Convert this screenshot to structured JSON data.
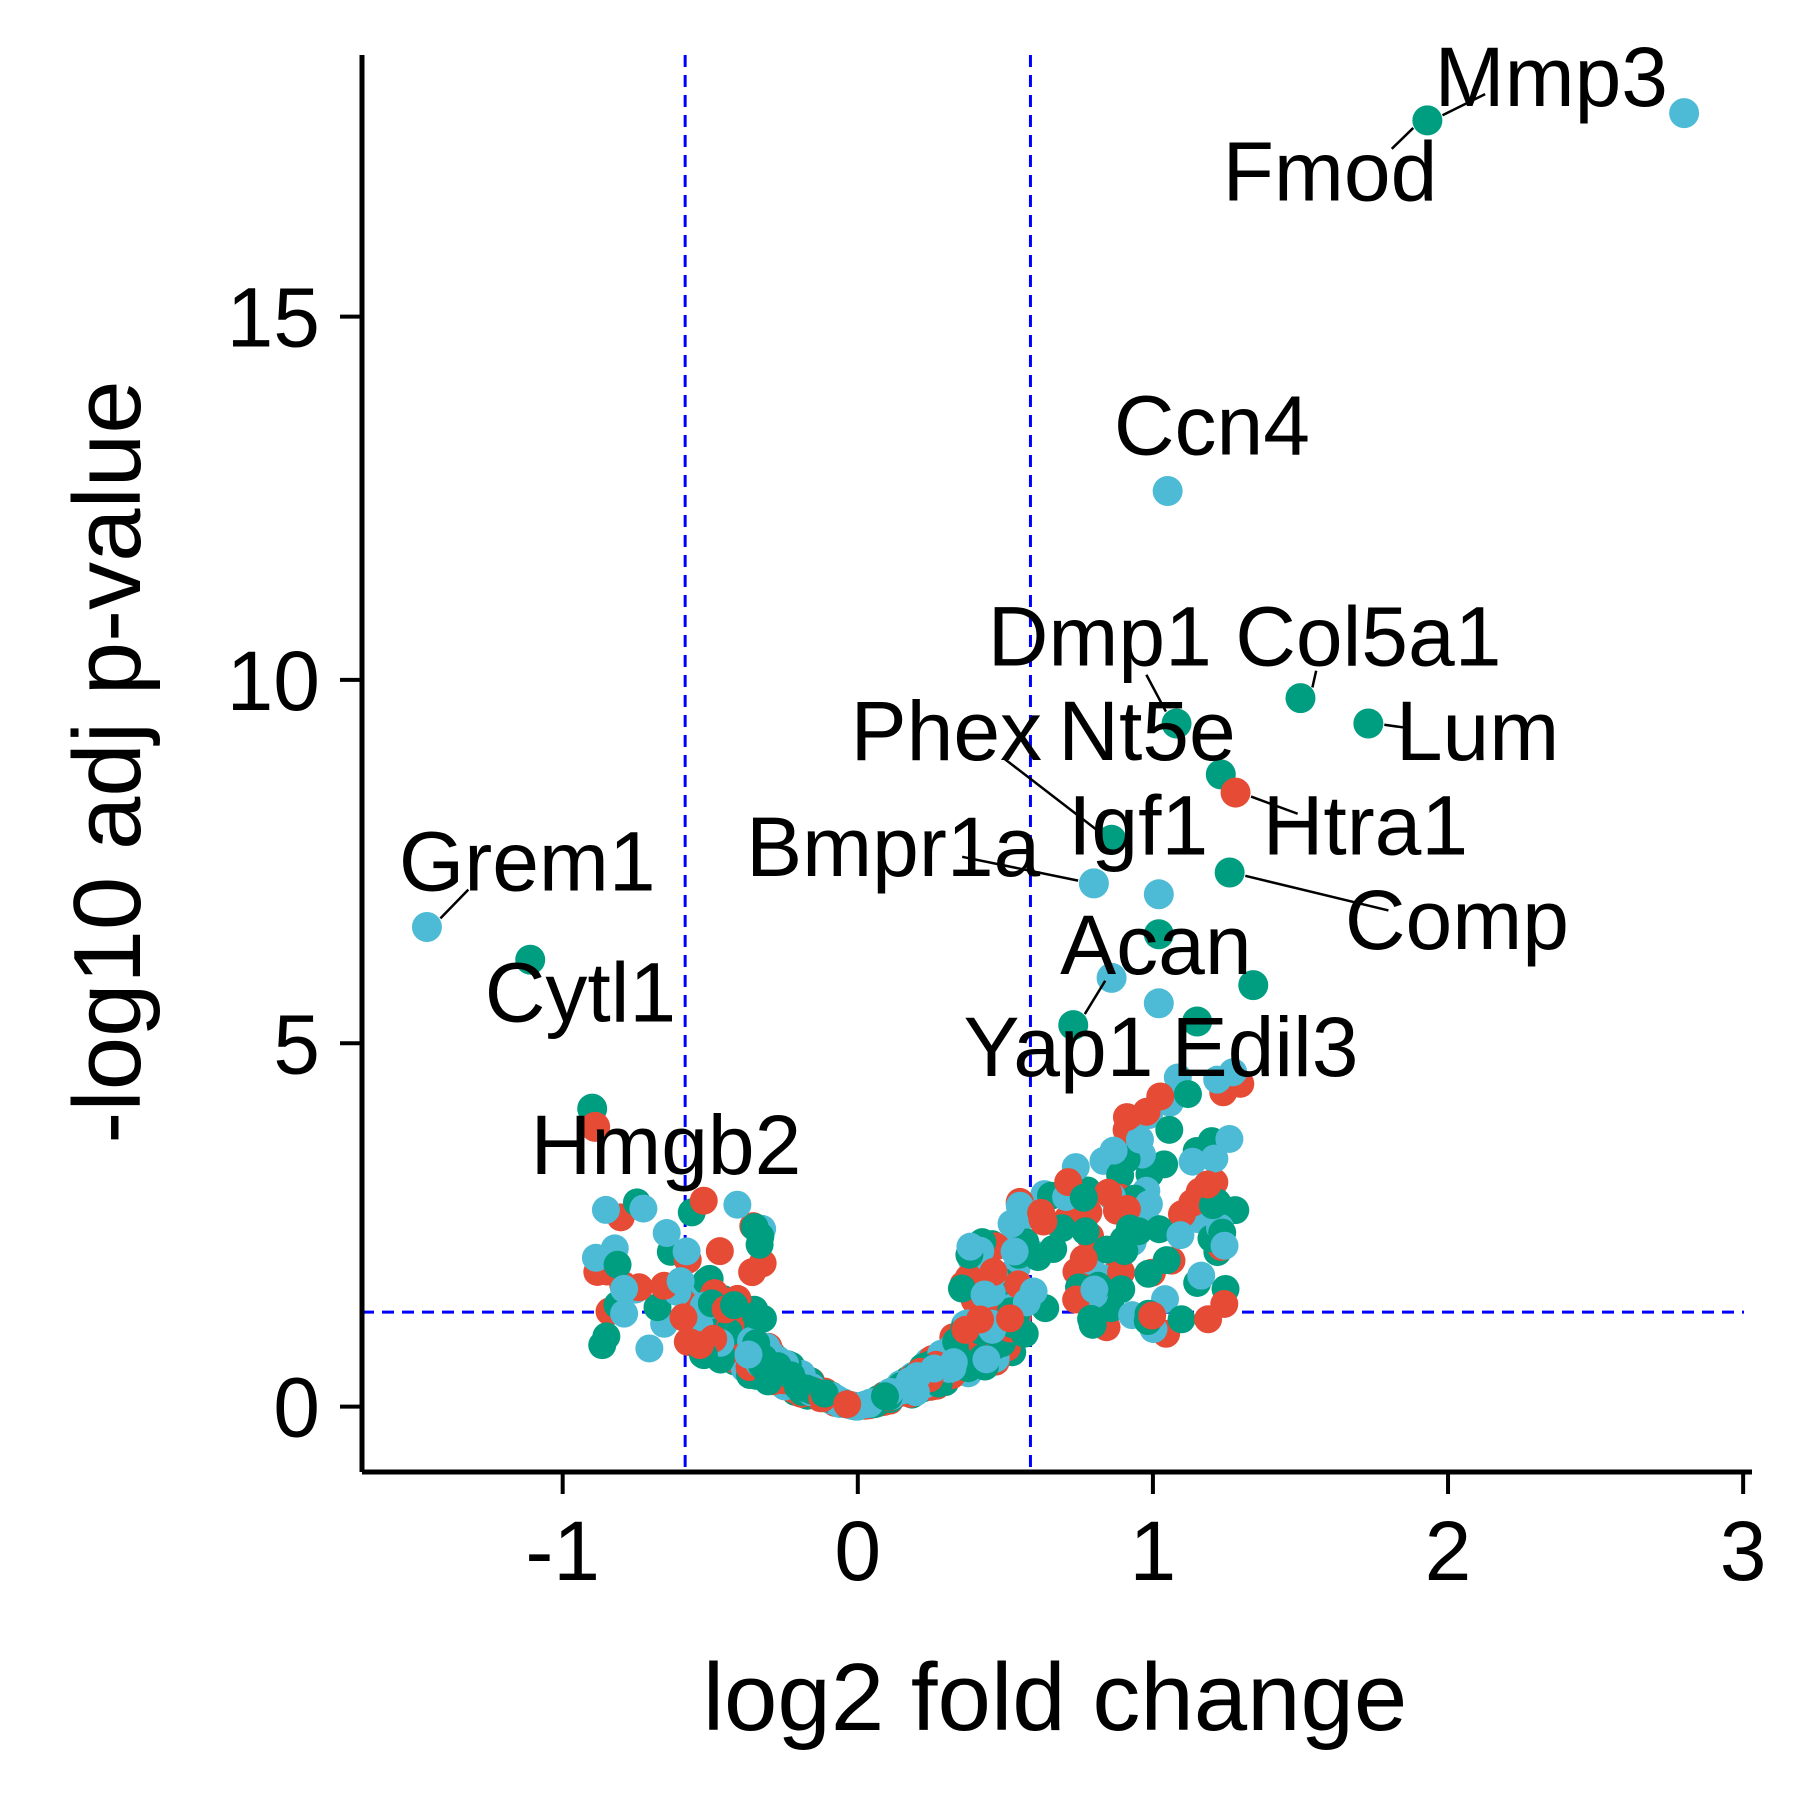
{
  "chart_data": {
    "type": "scatter",
    "title": "",
    "xlabel": "log2 fold change",
    "ylabel": "-log10 adj p-value",
    "xlim": [
      -1.68,
      3.03
    ],
    "ylim": [
      -0.9,
      18.6
    ],
    "x_ticks": [
      -1,
      0,
      1,
      2,
      3
    ],
    "y_ticks": [
      0,
      5,
      10,
      15
    ],
    "x_tick_labels": [
      "-1",
      "0",
      "1",
      "2",
      "3"
    ],
    "y_tick_labels": [
      "0",
      "5",
      "10",
      "15"
    ],
    "grid": false,
    "legend": "none",
    "thresholds": {
      "x": [
        -0.585,
        0.585
      ],
      "y": 1.3,
      "color": "#0000ff",
      "style": "dashed"
    },
    "colors": {
      "teal": "#009e80",
      "red": "#e64b35",
      "blue": "#4dbbd5"
    },
    "highlight_points": [
      {
        "x": 1.93,
        "y": 17.7,
        "color": "teal"
      },
      {
        "x": 2.8,
        "y": 17.8,
        "color": "blue"
      },
      {
        "x": 1.05,
        "y": 12.6,
        "color": "blue"
      },
      {
        "x": 1.5,
        "y": 9.75,
        "color": "teal"
      },
      {
        "x": 1.08,
        "y": 9.4,
        "color": "teal"
      },
      {
        "x": 1.73,
        "y": 9.4,
        "color": "teal"
      },
      {
        "x": 1.23,
        "y": 8.7,
        "color": "teal"
      },
      {
        "x": 1.28,
        "y": 8.45,
        "color": "red"
      },
      {
        "x": 0.86,
        "y": 7.8,
        "color": "teal"
      },
      {
        "x": 0.8,
        "y": 7.2,
        "color": "blue"
      },
      {
        "x": 1.02,
        "y": 7.05,
        "color": "blue"
      },
      {
        "x": 1.26,
        "y": 7.35,
        "color": "teal"
      },
      {
        "x": 1.02,
        "y": 6.5,
        "color": "teal"
      },
      {
        "x": 1.34,
        "y": 5.8,
        "color": "teal"
      },
      {
        "x": 0.86,
        "y": 5.9,
        "color": "blue"
      },
      {
        "x": 0.73,
        "y": 5.25,
        "color": "teal"
      },
      {
        "x": 1.15,
        "y": 5.3,
        "color": "teal"
      },
      {
        "x": 1.02,
        "y": 5.55,
        "color": "blue"
      },
      {
        "x": -1.46,
        "y": 6.6,
        "color": "blue"
      },
      {
        "x": -1.11,
        "y": 6.15,
        "color": "teal"
      },
      {
        "x": -0.9,
        "y": 4.1,
        "color": "teal"
      },
      {
        "x": -0.89,
        "y": 3.85,
        "color": "red"
      }
    ],
    "labels": [
      {
        "text": "Mmp3",
        "x": 2.35,
        "y": 17.9,
        "point_x": 1.93,
        "point_y": 17.7
      },
      {
        "text": "Fmod",
        "x": 1.6,
        "y": 16.6,
        "point_x": 1.93,
        "point_y": 17.7
      },
      {
        "text": "Ccn4",
        "x": 1.2,
        "y": 13.1,
        "point_x": 1.05,
        "point_y": 12.6
      },
      {
        "text": "Dmp1",
        "x": 0.82,
        "y": 10.2,
        "point_x": 1.08,
        "point_y": 9.4
      },
      {
        "text": "Col5a1",
        "x": 1.73,
        "y": 10.2,
        "point_x": 1.5,
        "point_y": 9.75
      },
      {
        "text": "Phex",
        "x": 0.3,
        "y": 8.9,
        "point_x": 0.86,
        "point_y": 7.8
      },
      {
        "text": "Nt5e",
        "x": 0.98,
        "y": 8.9,
        "point_x": 1.23,
        "point_y": 8.7
      },
      {
        "text": "Lum",
        "x": 2.1,
        "y": 8.9,
        "point_x": 1.73,
        "point_y": 9.4
      },
      {
        "text": "Igf1",
        "x": 0.95,
        "y": 7.6,
        "point_x": 1.02,
        "point_y": 7.05
      },
      {
        "text": "Htra1",
        "x": 1.72,
        "y": 7.6,
        "point_x": 1.28,
        "point_y": 8.45
      },
      {
        "text": "Bmpr1a",
        "x": 0.12,
        "y": 7.3,
        "point_x": 0.8,
        "point_y": 7.2
      },
      {
        "text": "Grem1",
        "x": -1.12,
        "y": 7.1,
        "point_x": -1.46,
        "point_y": 6.6
      },
      {
        "text": "Comp",
        "x": 2.03,
        "y": 6.3,
        "point_x": 1.26,
        "point_y": 7.35
      },
      {
        "text": "Acan",
        "x": 1.01,
        "y": 5.95,
        "point_x": 0.73,
        "point_y": 5.25
      },
      {
        "text": "Cytl1",
        "x": -0.94,
        "y": 5.3,
        "point_x": -1.11,
        "point_y": 6.15
      },
      {
        "text": "Yap1",
        "x": 0.68,
        "y": 4.55,
        "point_x": 0.86,
        "point_y": 5.9
      },
      {
        "text": "Edil3",
        "x": 1.38,
        "y": 4.55,
        "point_x": 1.34,
        "point_y": 5.8
      },
      {
        "text": "Hmgb2",
        "x": -0.65,
        "y": 3.2,
        "point_x": -0.9,
        "point_y": 4.1
      }
    ]
  }
}
